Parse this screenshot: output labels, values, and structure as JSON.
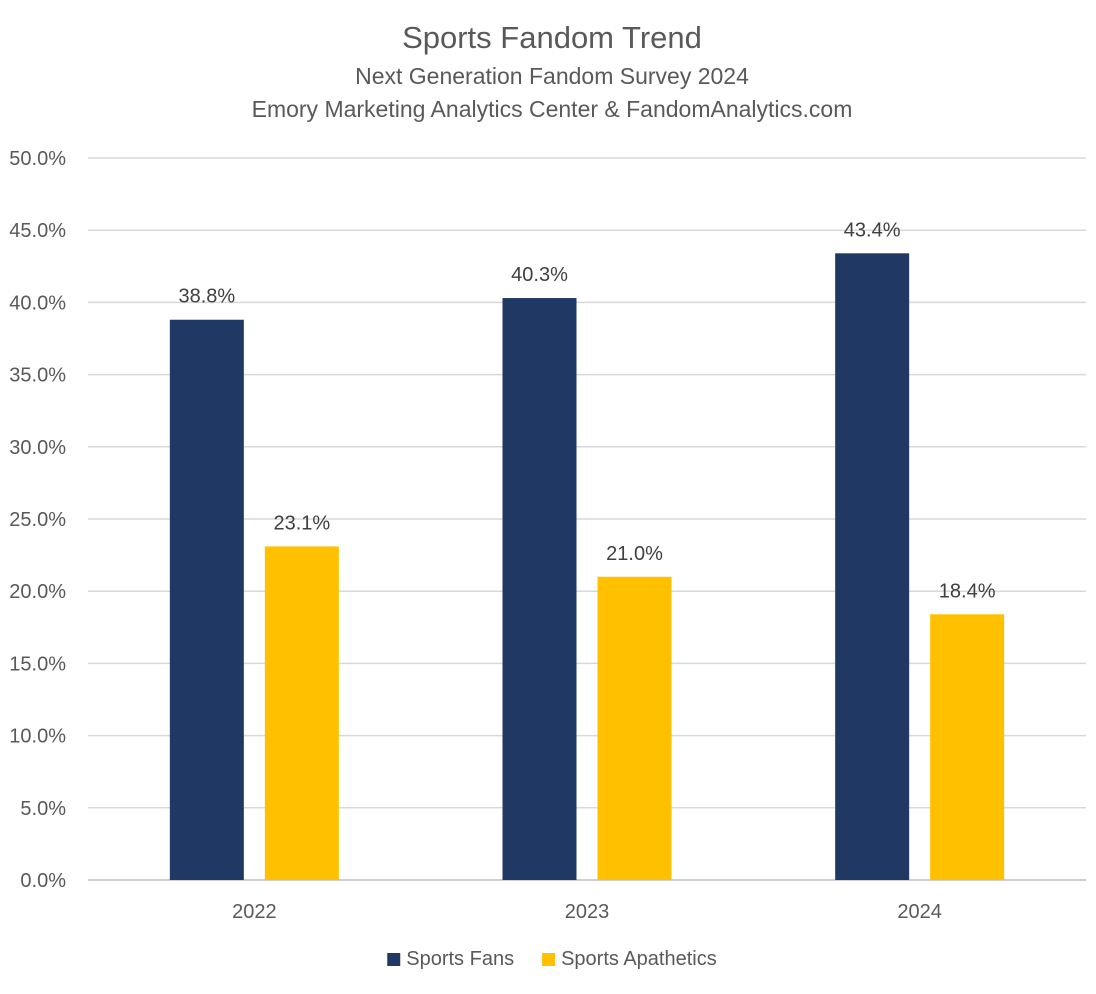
{
  "chart_data": {
    "type": "bar",
    "title": "Sports Fandom Trend",
    "subtitle_lines": [
      "Next Generation Fandom Survey 2024",
      "Emory Marketing Analytics Center & FandomAnalytics.com"
    ],
    "categories": [
      "2022",
      "2023",
      "2024"
    ],
    "series": [
      {
        "name": "Sports Fans",
        "color": "#203864",
        "values": [
          38.8,
          40.3,
          43.4
        ],
        "labels": [
          "38.8%",
          "40.3%",
          "43.4%"
        ]
      },
      {
        "name": "Sports Apathetics",
        "color": "#FFC000",
        "values": [
          23.1,
          21.0,
          18.4
        ],
        "labels": [
          "23.1%",
          "21.0%",
          "18.4%"
        ]
      }
    ],
    "ylim": [
      0,
      50
    ],
    "yticks": [
      0,
      5,
      10,
      15,
      20,
      25,
      30,
      35,
      40,
      45,
      50
    ],
    "ytick_labels": [
      "0.0%",
      "5.0%",
      "10.0%",
      "15.0%",
      "20.0%",
      "25.0%",
      "30.0%",
      "35.0%",
      "40.0%",
      "45.0%",
      "50.0%"
    ],
    "xlabel": "",
    "ylabel": "",
    "grid": true,
    "legend_position": "bottom"
  }
}
